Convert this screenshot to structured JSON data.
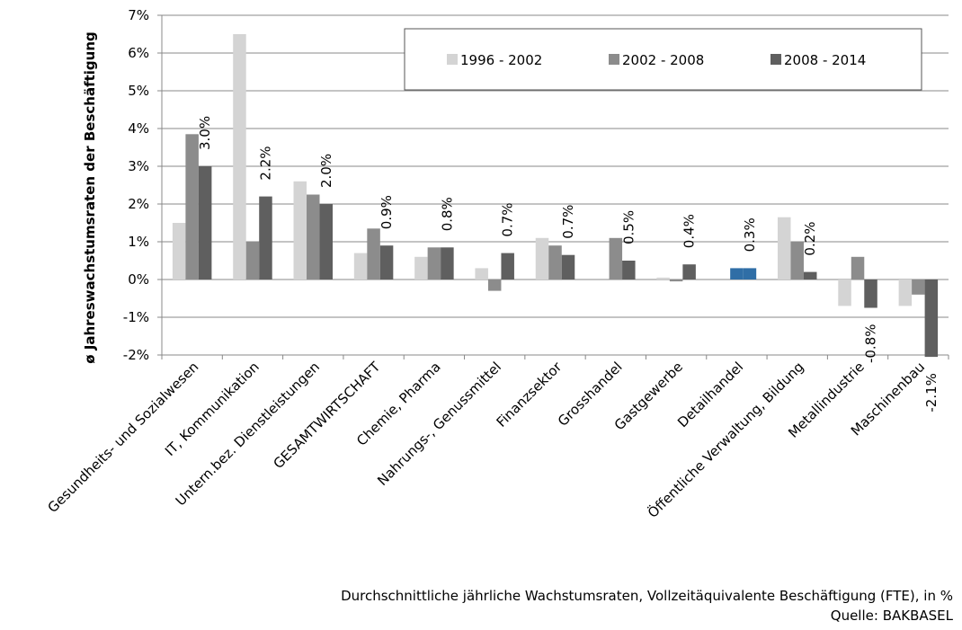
{
  "chart_data": {
    "type": "bar",
    "y_label": "ø Jahreswachstumsraten der Beschäftigung",
    "footnote": "Durchschnittliche jährliche Wachstumsraten, Vollzeitäquivalente Beschäftigung (FTE), in %",
    "source": "Quelle: BAKBASEL",
    "categories": [
      "Gesundheits- und Sozialwesen",
      "IT, Kommunikation",
      "Untern.bez. Dienstleistungen",
      "GESAMTWIRTSCHAFT",
      "Chemie, Pharma",
      "Nahrungs-, Genussmittel",
      "Finanzsektor",
      "Grosshandel",
      "Gastgewerbe",
      "Detailhandel",
      "Öffentliche Verwaltung, Bildung",
      "Metallindustrie",
      "Maschinenbau"
    ],
    "series": [
      {
        "name": "1996 - 2002",
        "color": "#d4d4d4",
        "values": [
          1.5,
          6.5,
          2.6,
          0.7,
          0.6,
          0.3,
          1.1,
          0,
          0.05,
          0,
          1.65,
          -0.7,
          -0.7
        ]
      },
      {
        "name": "2002 - 2008",
        "color": "#8c8c8c",
        "values": [
          3.85,
          1.0,
          2.25,
          1.35,
          0.85,
          -0.3,
          0.9,
          1.1,
          -0.05,
          0.3,
          1.0,
          0.6,
          -0.4
        ]
      },
      {
        "name": "2008 - 2014",
        "color": "#5f5f5f",
        "values": [
          3.0,
          2.2,
          2.0,
          0.9,
          0.85,
          0.7,
          0.65,
          0.5,
          0.4,
          0.3,
          0.2,
          -0.75,
          -2.05
        ],
        "value_labels": [
          "3.0%",
          "2.2%",
          "2.0%",
          "0.9%",
          "0.8%",
          "0.7%",
          "0.7%",
          "0.5%",
          "0.4%",
          "0.3%",
          "0.2%",
          "-0.8%",
          "-2.1%"
        ]
      }
    ],
    "highlight_category": "Detailhandel",
    "highlight_color": "#2f6ea6",
    "ylim": [
      -2,
      7
    ],
    "yticks": [
      {
        "value": -2,
        "label": "-2%"
      },
      {
        "value": -1,
        "label": "-1%"
      },
      {
        "value": 0,
        "label": "0%"
      },
      {
        "value": 1,
        "label": "1%"
      },
      {
        "value": 2,
        "label": "2%"
      },
      {
        "value": 3,
        "label": "3%"
      },
      {
        "value": 4,
        "label": "4%"
      },
      {
        "value": 5,
        "label": "5%"
      },
      {
        "value": 6,
        "label": "6%"
      },
      {
        "value": 7,
        "label": "7%"
      }
    ],
    "grid": true
  }
}
